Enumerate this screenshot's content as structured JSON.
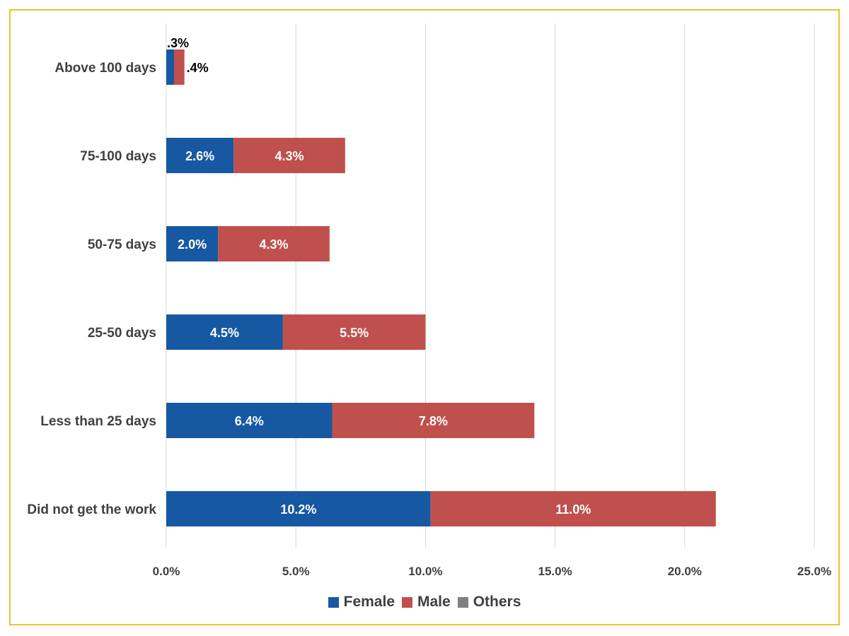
{
  "chart_data": {
    "type": "bar",
    "orientation": "horizontal",
    "stacked": true,
    "categories": [
      "Above 100 days",
      "75-100 days",
      "50-75 days",
      "25-50 days",
      "Less than 25 days",
      "Did not get the work"
    ],
    "series": [
      {
        "name": "Female",
        "color": "#1758a3",
        "values": [
          0.3,
          2.6,
          2.0,
          4.5,
          6.4,
          10.2
        ],
        "labels": [
          ".3%",
          "2.6%",
          "2.0%",
          "4.5%",
          "6.4%",
          "10.2%"
        ]
      },
      {
        "name": "Male",
        "color": "#c0504d",
        "values": [
          0.4,
          4.3,
          4.3,
          5.5,
          7.8,
          11.0
        ],
        "labels": [
          ".4%",
          "4.3%",
          "4.3%",
          "5.5%",
          "7.8%",
          "11.0%"
        ]
      },
      {
        "name": "Others",
        "color": "#808080",
        "values": [
          0,
          0,
          0,
          0,
          0,
          0
        ],
        "labels": [
          "",
          "",
          "",
          "",
          "",
          ""
        ]
      }
    ],
    "xlim": [
      0,
      25
    ],
    "xticks": [
      0,
      5,
      10,
      15,
      20,
      25
    ],
    "xtick_labels": [
      "0.0%",
      "5.0%",
      "10.0%",
      "15.0%",
      "20.0%",
      "25.0%"
    ],
    "grid": true,
    "legend_position": "bottom",
    "title": "",
    "xlabel": "",
    "ylabel": ""
  }
}
